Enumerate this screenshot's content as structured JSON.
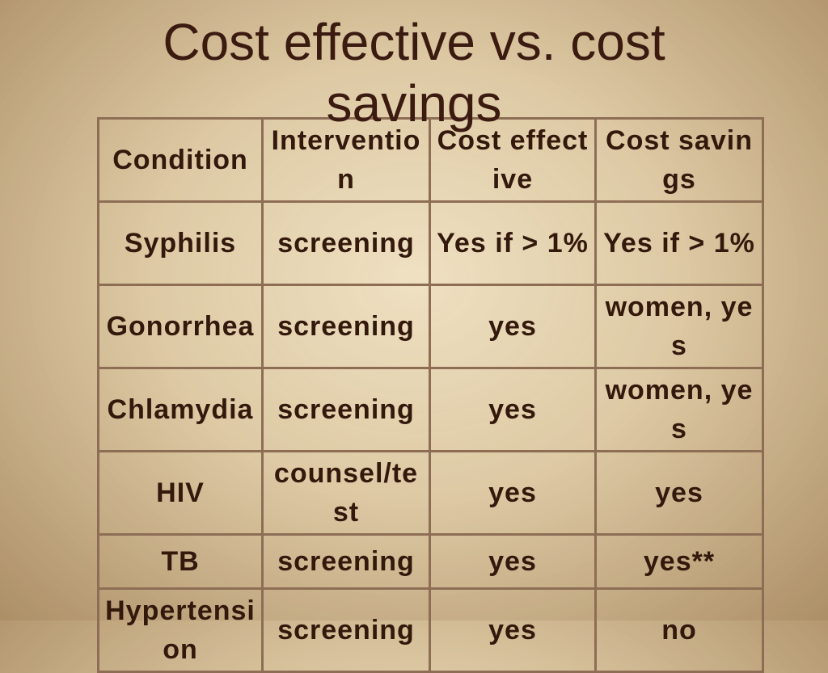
{
  "header": {
    "title": "Cost effective vs. cost savings"
  },
  "table": {
    "columns": [
      "Condition",
      "Intervention",
      "Cost effective",
      "Cost savings"
    ],
    "rows": [
      [
        "Syphilis",
        "screening",
        "Yes if > 1%",
        "Yes if > 1%"
      ],
      [
        "Gonorrhea",
        "screening",
        "yes",
        "women, yes"
      ],
      [
        "Chlamydia",
        "screening",
        "yes",
        "women, yes"
      ],
      [
        "HIV",
        "counsel/test",
        "yes",
        "yes"
      ],
      [
        "TB",
        "screening",
        "yes",
        "yes**"
      ],
      [
        "Hypertension",
        "screening",
        "yes",
        "no"
      ]
    ]
  }
}
